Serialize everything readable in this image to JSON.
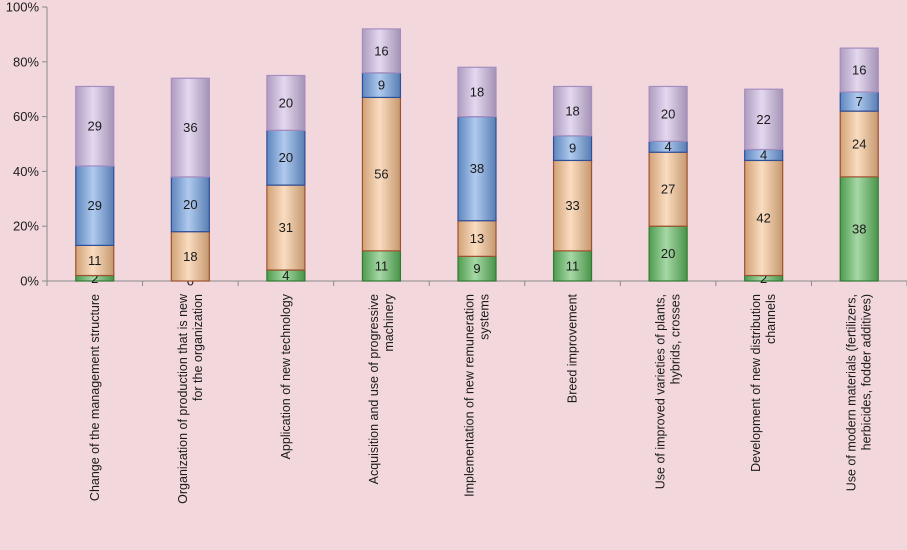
{
  "chart_data": {
    "type": "bar",
    "stacked": true,
    "normalized_percent": true,
    "categories": [
      [
        "Change of the management structure"
      ],
      [
        "Organization of production that is new",
        "for the organization"
      ],
      [
        "Application of new technology"
      ],
      [
        "Acquisition and use of progressive",
        "machinery"
      ],
      [
        "Implementation of new remuneration",
        "systems"
      ],
      [
        "Breed improvement"
      ],
      [
        "Use of improved varieties of plants,",
        "hybrids, crosses"
      ],
      [
        "Development of new distribution",
        "channels"
      ],
      [
        "Use of modern materials (fertilizers,",
        "herbicides, fodder additives)"
      ]
    ],
    "series": [
      {
        "values": [
          2,
          0,
          4,
          11,
          9,
          11,
          20,
          2,
          38
        ],
        "color": "#5db85d"
      },
      {
        "values": [
          11,
          18,
          31,
          56,
          13,
          33,
          27,
          42,
          24
        ],
        "color": "#f6bf8c"
      },
      {
        "values": [
          29,
          20,
          20,
          9,
          38,
          9,
          4,
          4,
          7
        ],
        "color": "#6f9ee0"
      },
      {
        "values": [
          29,
          36,
          20,
          16,
          18,
          18,
          20,
          22,
          16
        ],
        "color": "#cdb8e2"
      }
    ],
    "y_ticks": [
      "0%",
      "20%",
      "40%",
      "60%",
      "80%",
      "100%"
    ],
    "ylim": [
      0,
      100
    ],
    "grid": false,
    "legend": "none",
    "title": "",
    "xlabel": "",
    "ylabel": ""
  }
}
